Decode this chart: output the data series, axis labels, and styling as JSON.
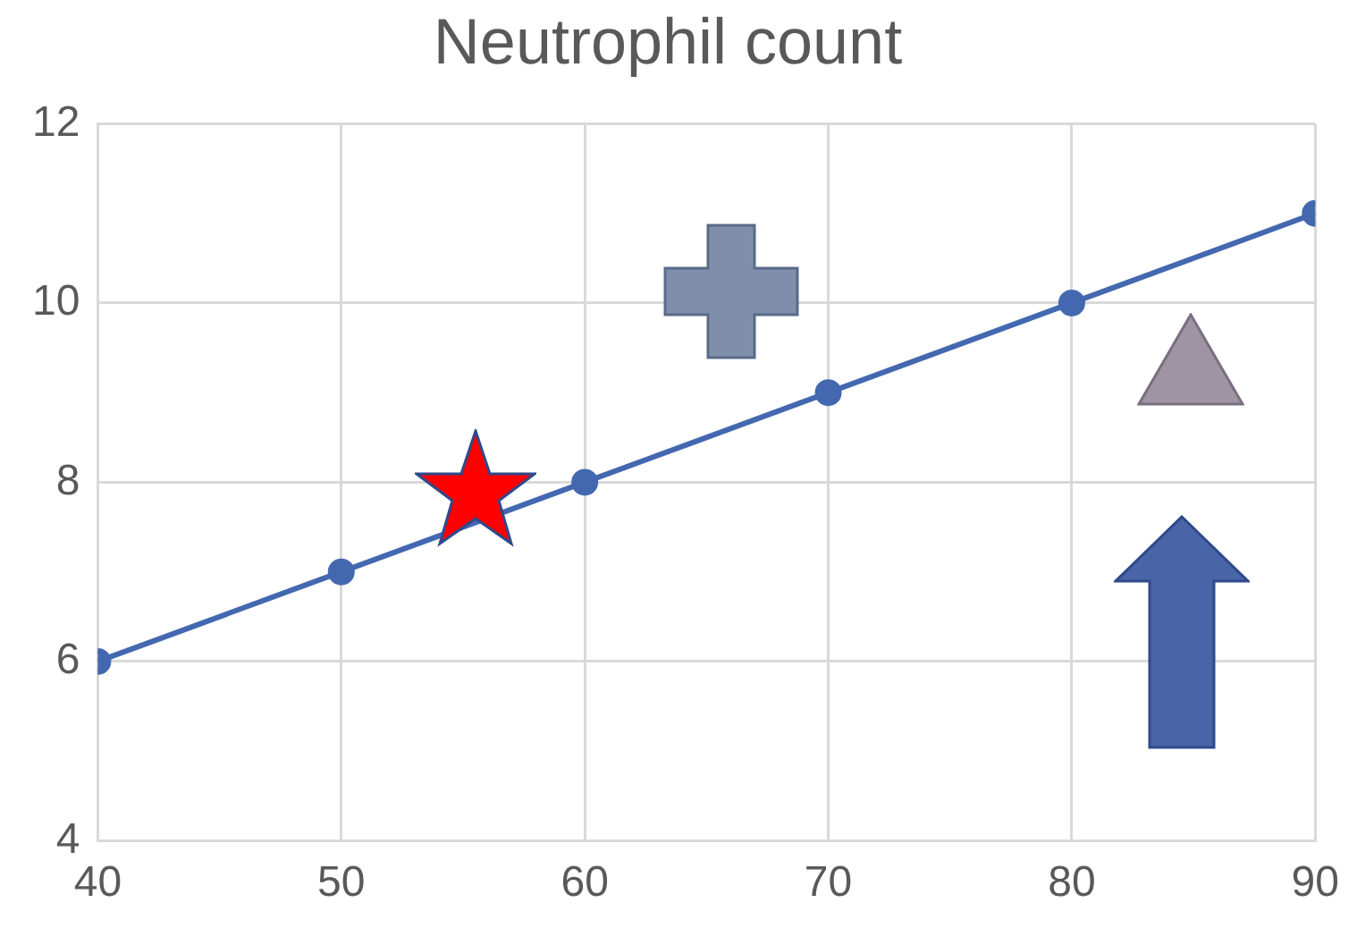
{
  "chart_data": {
    "type": "line",
    "title": "Neutrophil count",
    "x": [
      40,
      50,
      60,
      70,
      80,
      90
    ],
    "values": [
      6,
      7,
      8,
      9,
      10,
      11
    ],
    "color": "#4468b0",
    "xlim": [
      40,
      90
    ],
    "xticks": [
      40,
      50,
      60,
      70,
      80,
      90
    ],
    "ylim": [
      4,
      12
    ],
    "yticks": [
      4,
      6,
      8,
      10,
      12
    ],
    "grid": true,
    "marker": "circle",
    "line_style": "solid"
  }
}
